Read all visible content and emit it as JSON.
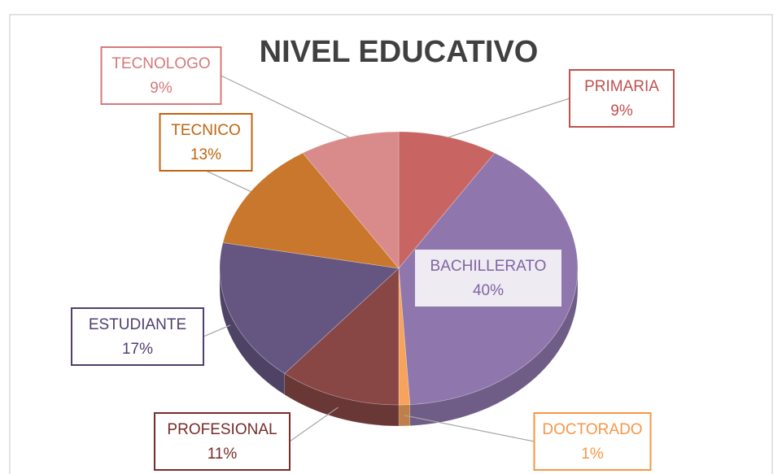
{
  "chart_data": {
    "type": "pie",
    "title": "NIVEL EDUCATIVO",
    "categories": [
      "PRIMARIA",
      "BACHILLERATO",
      "DOCTORADO",
      "PROFESIONAL",
      "ESTUDIANTE",
      "TECNICO",
      "TECNOLOGO"
    ],
    "values": [
      9,
      40,
      1,
      11,
      17,
      13,
      9
    ],
    "value_labels": [
      "9%",
      "40%",
      "1%",
      "11%",
      "17%",
      "13%",
      "9%"
    ],
    "colors": [
      "#c0504d",
      "#8064a2",
      "#f79646",
      "#772c2a",
      "#4f3f6e",
      "#c0640f",
      "#d47a7a"
    ]
  }
}
